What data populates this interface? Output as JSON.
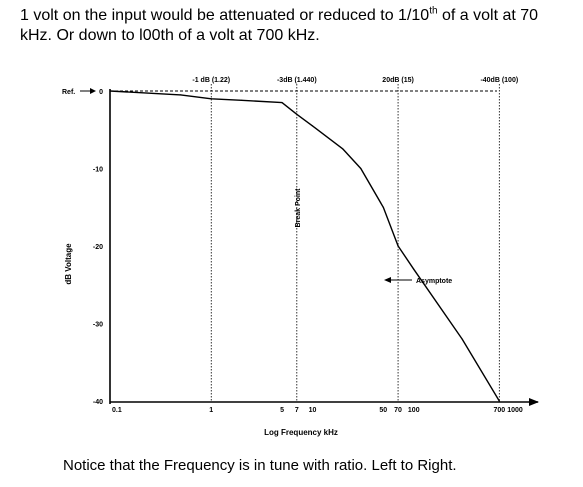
{
  "intro": {
    "text_a": "1 volt on the input would be attenuated or reduced to 1/10",
    "sup": "th",
    "text_b": " of a volt at 70 kHz. Or down to l00th of a volt at 700 kHz."
  },
  "footer": "Notice that the Frequency is in tune with ratio. Left to Right.",
  "chart_data": {
    "type": "line",
    "title": "",
    "xlabel": "Log Frequency   kHz",
    "ylabel": "dB  Voltage",
    "xscale": "log",
    "xlim": [
      0.1,
      1000
    ],
    "ylim": [
      -40,
      0
    ],
    "x_tick_labels": [
      "0.1",
      "1",
      "5",
      "7",
      "10",
      "50",
      "70",
      "100",
      "700",
      "1000"
    ],
    "y_tick_labels": [
      "0",
      "-10",
      "-20",
      "-30",
      "-40"
    ],
    "ref_label": "Ref.",
    "grid": false,
    "series": [
      {
        "x": [
          0.1,
          0.5,
          1,
          2,
          5,
          7,
          10,
          20,
          30,
          50,
          70,
          100,
          300,
          700
        ],
        "y": [
          0,
          -0.5,
          -1,
          -1.2,
          -1.5,
          -3,
          -4.5,
          -7.5,
          -10,
          -15,
          -20,
          -23,
          -32,
          -40
        ]
      }
    ],
    "markers": [
      {
        "x": 1,
        "label": "-1 dB (1.22)"
      },
      {
        "x": 7,
        "label": "-3dB (1.440)"
      },
      {
        "x": 70,
        "label": "20dB (15)"
      },
      {
        "x": 700,
        "label": "-40dB (100)"
      }
    ],
    "annotations": {
      "break_point": "Break Point",
      "asymptote": "Asymptote"
    }
  }
}
